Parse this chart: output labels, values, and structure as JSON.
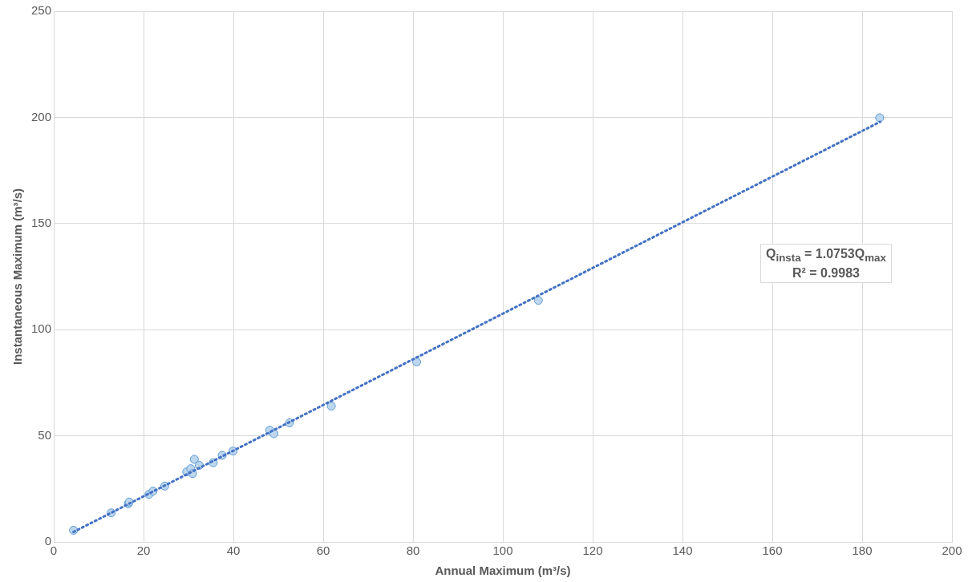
{
  "chart_data": {
    "type": "scatter",
    "xlabel": "Annual Maximum (m³/s)",
    "ylabel": "Instantaneous Maximum (m³/s)",
    "xlim": [
      0,
      200
    ],
    "xticks": [
      0,
      20,
      40,
      60,
      80,
      100,
      120,
      140,
      160,
      180,
      200
    ],
    "ylim": [
      0,
      250
    ],
    "yticks": [
      0,
      50,
      100,
      150,
      200,
      250
    ],
    "grid": true,
    "legend": false,
    "marker": "circle",
    "annotations": [
      "Q$_{insta}$ = 1.0753Q$_{max}$",
      "R² = 0.9983"
    ],
    "series": [
      {
        "color": "#bdd7ee",
        "x": [
          4.4,
          12.8,
          16.6,
          16.8,
          21.2,
          22.1,
          24.7,
          29.6,
          30.5,
          30.9,
          31.3,
          32.4,
          35.5,
          37.5,
          39.9,
          48.1,
          49,
          52.5,
          61.8,
          80.8,
          107.9,
          183.9
        ],
        "values": [
          5.5,
          13.7,
          18,
          18.8,
          22.4,
          23.9,
          26.3,
          33,
          34.5,
          32.2,
          38.9,
          36.1,
          37.3,
          40.8,
          42.8,
          52.6,
          51,
          56.1,
          64,
          84.8,
          113.8,
          199.8
        ]
      },
      {
        "type": "line",
        "color": "#4472c4",
        "line_style": "dotted",
        "marker": "none",
        "x": [
          4.4,
          184
        ],
        "values": [
          4.7,
          197.9
        ]
      }
    ]
  }
}
